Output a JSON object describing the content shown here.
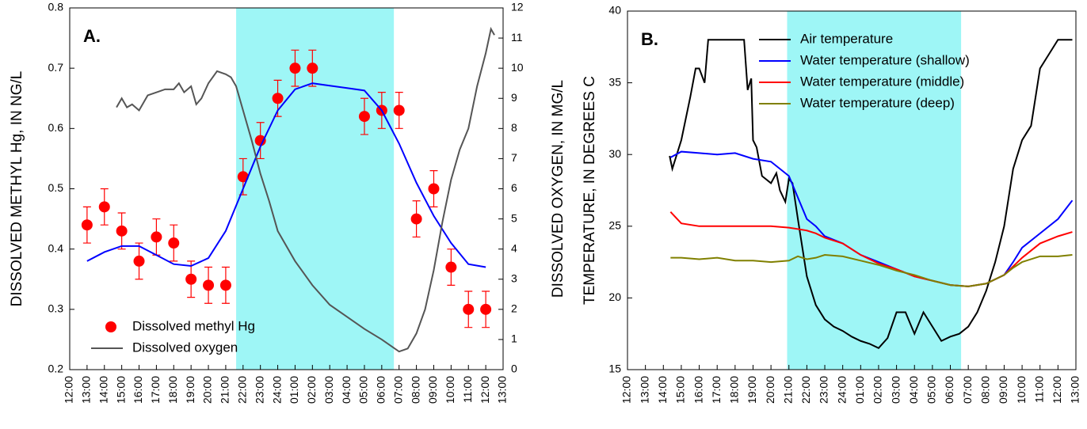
{
  "chart_data": [
    {
      "type": "line",
      "panel_label": "A.",
      "ylabel": "DISSOLVED METHYL Hg, IN NG/L",
      "y2label": "DISSOLVED OXYGEN, IN MG/L",
      "xlim": [
        0,
        25
      ],
      "ylim": [
        0.2,
        0.8
      ],
      "yticks": [
        0.2,
        0.3,
        0.4,
        0.5,
        0.6,
        0.7,
        0.8
      ],
      "y2lim": [
        0,
        12
      ],
      "y2ticks": [
        0,
        1,
        2,
        3,
        4,
        5,
        6,
        7,
        8,
        9,
        10,
        11,
        12
      ],
      "xticks": [
        {
          "value": 0,
          "label": "12:00"
        },
        {
          "value": 1,
          "label": "13:00"
        },
        {
          "value": 2,
          "label": "14:00"
        },
        {
          "value": 3,
          "label": "15:00"
        },
        {
          "value": 4,
          "label": "16:00"
        },
        {
          "value": 5,
          "label": "17:00"
        },
        {
          "value": 6,
          "label": "18:00"
        },
        {
          "value": 7,
          "label": "19:00"
        },
        {
          "value": 8,
          "label": "20:00"
        },
        {
          "value": 9,
          "label": "21:00"
        },
        {
          "value": 10,
          "label": "22:00"
        },
        {
          "value": 11,
          "label": "23:00"
        },
        {
          "value": 12,
          "label": "24:00"
        },
        {
          "value": 13,
          "label": "01:00"
        },
        {
          "value": 14,
          "label": "02:00"
        },
        {
          "value": 15,
          "label": "03:00"
        },
        {
          "value": 16,
          "label": "04:00"
        },
        {
          "value": 17,
          "label": "05:00"
        },
        {
          "value": 18,
          "label": "06:00"
        },
        {
          "value": 19,
          "label": "07:00"
        },
        {
          "value": 20,
          "label": "08:00"
        },
        {
          "value": 21,
          "label": "09:00"
        },
        {
          "value": 22,
          "label": "10:00"
        },
        {
          "value": 23,
          "label": "11:00"
        },
        {
          "value": 24,
          "label": "12:00"
        },
        {
          "value": 25,
          "label": "13:00"
        }
      ],
      "shaded_x": [
        9.6,
        18.7
      ],
      "shade_color": "#9ef6f6",
      "legend": "lower left",
      "series": [
        {
          "name": "Dissolved methyl Hg",
          "color": "#ff0000",
          "style": "points",
          "x": [
            1,
            2,
            3,
            4,
            5,
            6,
            7,
            8,
            9,
            10,
            11,
            12,
            13,
            14,
            17,
            18,
            19,
            20,
            21,
            22,
            23,
            24
          ],
          "values": [
            0.44,
            0.47,
            0.43,
            0.38,
            0.42,
            0.41,
            0.35,
            0.34,
            0.34,
            0.52,
            0.58,
            0.65,
            0.7,
            0.7,
            0.62,
            0.63,
            0.63,
            0.45,
            0.5,
            0.37,
            0.3,
            0.3
          ],
          "errors": [
            0.03,
            0.03,
            0.03,
            0.03,
            0.03,
            0.03,
            0.03,
            0.03,
            0.03,
            0.03,
            0.03,
            0.03,
            0.03,
            0.03,
            0.03,
            0.03,
            0.03,
            0.03,
            0.03,
            0.03,
            0.03,
            0.03
          ]
        },
        {
          "color": "#0000ff",
          "style": "line",
          "x": [
            1,
            2,
            3,
            4,
            5,
            6,
            7,
            8,
            9,
            10,
            11,
            12,
            13,
            14,
            15,
            16,
            17,
            18,
            19,
            20,
            21,
            22,
            23,
            24
          ],
          "values": [
            0.38,
            0.395,
            0.405,
            0.405,
            0.39,
            0.375,
            0.372,
            0.385,
            0.43,
            0.5,
            0.57,
            0.63,
            0.665,
            0.675,
            0.671,
            0.667,
            0.663,
            0.63,
            0.575,
            0.51,
            0.455,
            0.41,
            0.375,
            0.37
          ]
        },
        {
          "name": "Dissolved oxygen",
          "color": "#555555",
          "style": "line",
          "axis": "y2",
          "x": [
            2.7,
            3.0,
            3.3,
            3.6,
            4.0,
            4.5,
            5,
            5.5,
            6,
            6.3,
            6.6,
            7,
            7.3,
            7.6,
            8,
            8.5,
            9,
            9.3,
            9.6,
            10,
            10.5,
            11,
            11.5,
            12,
            13,
            14,
            15,
            16,
            17,
            18,
            18.5,
            19,
            19.5,
            20,
            20.5,
            21,
            21.5,
            22,
            22.5,
            23,
            23.5,
            24,
            24.3,
            24.5
          ],
          "values": [
            8.7,
            9.0,
            8.7,
            8.8,
            8.6,
            9.1,
            9.2,
            9.3,
            9.3,
            9.5,
            9.2,
            9.4,
            8.8,
            9.0,
            9.5,
            9.9,
            9.8,
            9.7,
            9.4,
            8.6,
            7.6,
            6.5,
            5.6,
            4.6,
            3.6,
            2.8,
            2.15,
            1.75,
            1.35,
            1.0,
            0.8,
            0.6,
            0.7,
            1.2,
            2.0,
            3.3,
            4.9,
            6.3,
            7.3,
            8.0,
            9.4,
            10.5,
            11.3,
            11.1
          ]
        }
      ]
    },
    {
      "type": "line",
      "panel_label": "B.",
      "ylabel": "TEMPERATURE, IN DEGREES C",
      "xlim": [
        0,
        25
      ],
      "ylim": [
        15,
        40
      ],
      "yticks": [
        15,
        20,
        25,
        30,
        35,
        40
      ],
      "xticks": [
        {
          "value": 0,
          "label": "12:00"
        },
        {
          "value": 1,
          "label": "13:00"
        },
        {
          "value": 2,
          "label": "14:00"
        },
        {
          "value": 3,
          "label": "15:00"
        },
        {
          "value": 4,
          "label": "16:00"
        },
        {
          "value": 5,
          "label": "17:00"
        },
        {
          "value": 6,
          "label": "18:00"
        },
        {
          "value": 7,
          "label": "19:00"
        },
        {
          "value": 8,
          "label": "20:00"
        },
        {
          "value": 9,
          "label": "21:00"
        },
        {
          "value": 10,
          "label": "22:00"
        },
        {
          "value": 11,
          "label": "23:00"
        },
        {
          "value": 12,
          "label": "24:00"
        },
        {
          "value": 13,
          "label": "01:00"
        },
        {
          "value": 14,
          "label": "02:00"
        },
        {
          "value": 15,
          "label": "03:00"
        },
        {
          "value": 16,
          "label": "04:00"
        },
        {
          "value": 17,
          "label": "05:00"
        },
        {
          "value": 18,
          "label": "06:00"
        },
        {
          "value": 19,
          "label": "07:00"
        },
        {
          "value": 20,
          "label": "08:00"
        },
        {
          "value": 21,
          "label": "09:00"
        },
        {
          "value": 22,
          "label": "10:00"
        },
        {
          "value": 23,
          "label": "11:00"
        },
        {
          "value": 24,
          "label": "12:00"
        },
        {
          "value": 25,
          "label": "13:00"
        }
      ],
      "shaded_x": [
        8.9,
        18.6
      ],
      "shade_color": "#9ef6f6",
      "legend": "upper center",
      "series": [
        {
          "name": "Air temperature",
          "color": "#000000",
          "style": "line",
          "x": [
            2.35,
            2.5,
            3,
            3.5,
            3.8,
            4,
            4.3,
            4.5,
            5,
            6,
            6.5,
            6.7,
            6.9,
            7,
            7.2,
            7.5,
            8,
            8.3,
            8.5,
            8.8,
            9,
            9.2,
            9.5,
            10,
            10.5,
            11,
            11.5,
            12,
            12.5,
            13,
            13.5,
            14,
            14.5,
            15,
            15.5,
            16,
            16.5,
            17,
            17.5,
            18,
            18.5,
            19,
            19.5,
            20,
            20.5,
            21,
            21.5,
            22,
            22.5,
            23,
            23.5,
            24,
            24.8
          ],
          "values": [
            29.9,
            29,
            31,
            34,
            36,
            36,
            35,
            38,
            38,
            38,
            38,
            34.5,
            35.3,
            31,
            30.5,
            28.5,
            28,
            28.7,
            27.5,
            26.7,
            28.3,
            28,
            25.5,
            21.5,
            19.5,
            18.5,
            18,
            17.7,
            17.3,
            17,
            16.8,
            16.5,
            17.2,
            19,
            19,
            17.5,
            19,
            18,
            17,
            17.3,
            17.5,
            18,
            19,
            20.5,
            22.5,
            25,
            29,
            31,
            32,
            36,
            37,
            38,
            38
          ]
        },
        {
          "name": "Water temperature (shallow)",
          "color": "#0000ff",
          "style": "line",
          "x": [
            2.4,
            3,
            4,
            5,
            6,
            7,
            8,
            9,
            9.5,
            10,
            10.5,
            11,
            12,
            13,
            14,
            15,
            16,
            17,
            18,
            19,
            20,
            21,
            21.5,
            22,
            23,
            24,
            24.8
          ],
          "values": [
            29.8,
            30.2,
            30.1,
            30,
            30.1,
            29.7,
            29.5,
            28.5,
            27,
            25.5,
            25,
            24.3,
            23.8,
            23,
            22.5,
            22,
            21.5,
            21.2,
            20.9,
            20.8,
            21,
            21.6,
            22.5,
            23.5,
            24.5,
            25.5,
            26.8
          ]
        },
        {
          "name": "Water temperature (middle)",
          "color": "#ff0000",
          "style": "line",
          "x": [
            2.4,
            3,
            4,
            5,
            6,
            7,
            8,
            9,
            9.5,
            10,
            10.5,
            11,
            12,
            13,
            14,
            15,
            16,
            17,
            18,
            19,
            20,
            21,
            21.5,
            22,
            23,
            24,
            24.8
          ],
          "values": [
            26,
            25.2,
            25,
            25,
            25,
            25,
            25,
            24.9,
            24.8,
            24.7,
            24.5,
            24.2,
            23.8,
            23,
            22.4,
            22,
            21.5,
            21.2,
            20.9,
            20.8,
            21,
            21.6,
            22.2,
            22.8,
            23.8,
            24.3,
            24.6
          ]
        },
        {
          "name": "Water temperature (deep)",
          "color": "#808000",
          "style": "line",
          "x": [
            2.4,
            3,
            4,
            5,
            6,
            7,
            8,
            9,
            9.5,
            10,
            10.5,
            11,
            12,
            13,
            14,
            15,
            16,
            17,
            18,
            19,
            20,
            21,
            21.5,
            22,
            23,
            24,
            24.8
          ],
          "values": [
            22.8,
            22.8,
            22.7,
            22.8,
            22.6,
            22.6,
            22.5,
            22.6,
            22.9,
            22.7,
            22.8,
            23,
            22.9,
            22.6,
            22.3,
            21.9,
            21.6,
            21.2,
            20.9,
            20.8,
            21,
            21.6,
            22.1,
            22.5,
            22.9,
            22.9,
            23
          ]
        }
      ]
    }
  ]
}
